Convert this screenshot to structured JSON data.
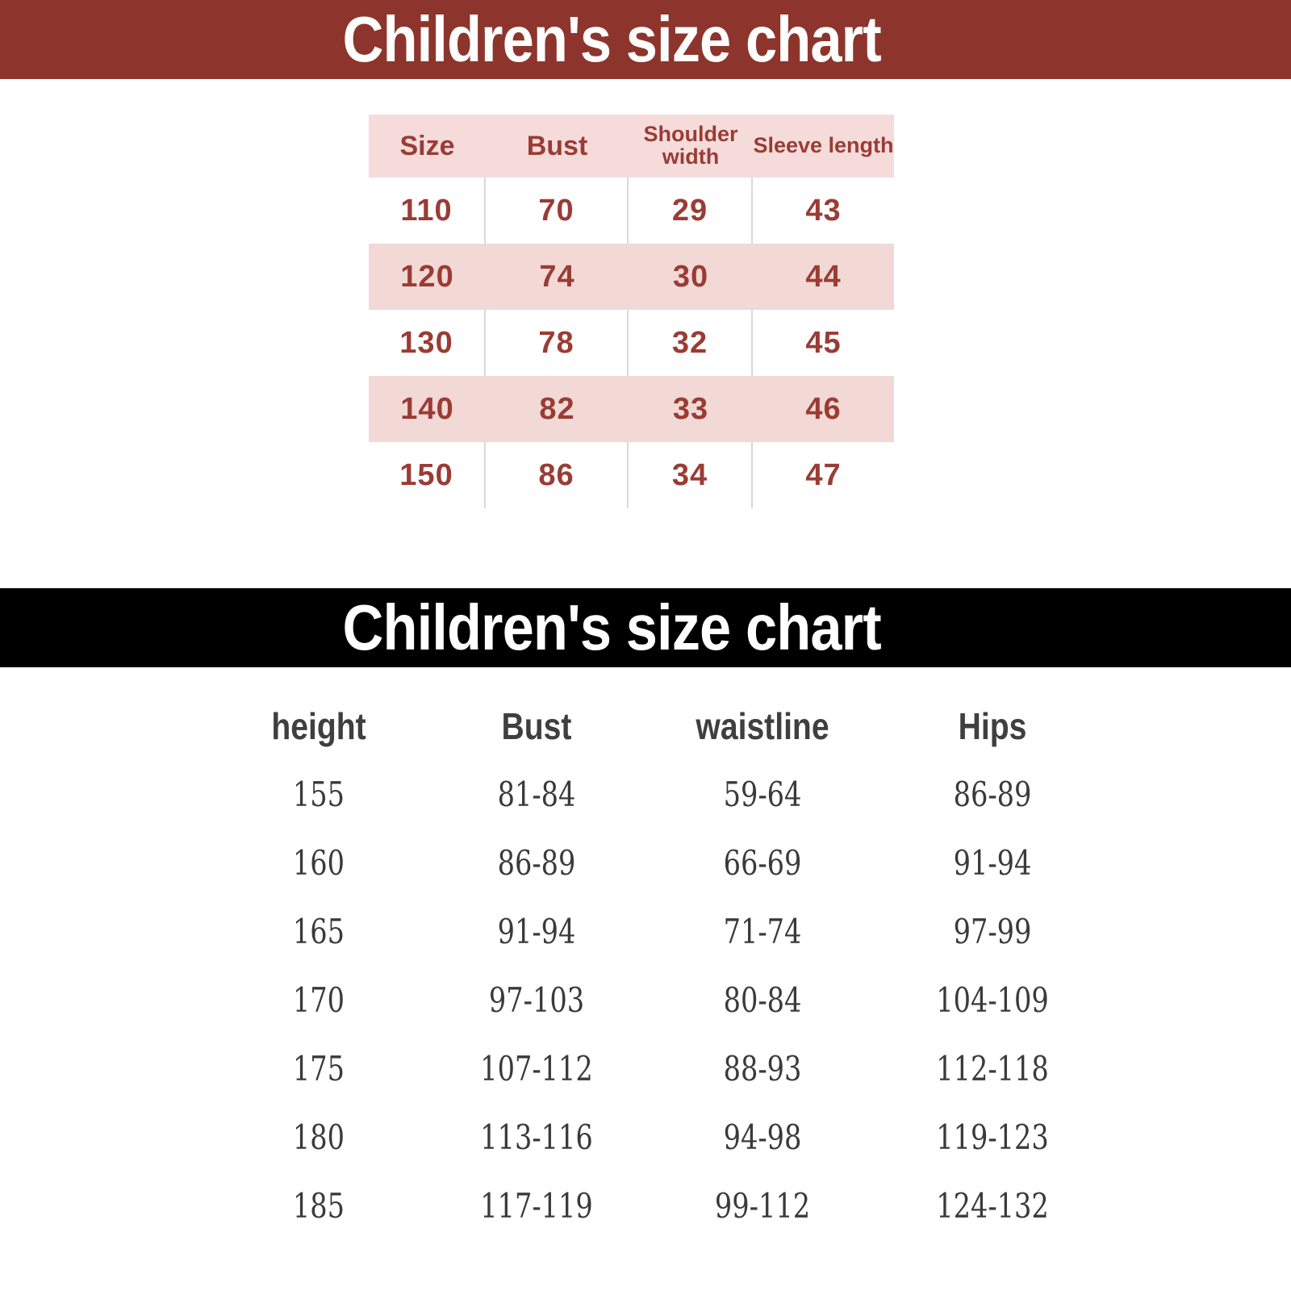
{
  "colors": {
    "page_bg": "#ffffff",
    "top_bar": "#8d352c",
    "bottom_bar": "#000000",
    "title_text": "#ffffff",
    "table1_header_bg": "#f5dcdb",
    "table1_alt_row_bg": "#f2d9d6",
    "table1_text": "#9a3c35",
    "divider": "#d9d9db",
    "table2_header_text": "#3f3f3f",
    "table2_text": "#3a3a3a"
  },
  "sections": [
    {
      "title": "Children's size chart"
    },
    {
      "title": "Children's size chart"
    }
  ],
  "chart_data": [
    {
      "type": "table",
      "title": "Children's size chart",
      "columns": [
        "Size",
        "Bust",
        "Shoulder width",
        "Sleeve length"
      ],
      "rows": [
        [
          "110",
          "70",
          "29",
          "43"
        ],
        [
          "120",
          "74",
          "30",
          "44"
        ],
        [
          "130",
          "78",
          "32",
          "45"
        ],
        [
          "140",
          "82",
          "33",
          "46"
        ],
        [
          "150",
          "86",
          "34",
          "47"
        ]
      ],
      "layout_hints": {
        "alt_row_shading": "rows 120 and 140 shaded pink",
        "grid": "light vertical dividers on white rows only"
      }
    },
    {
      "type": "table",
      "title": "Children's size chart",
      "columns": [
        "height",
        "Bust",
        "waistline",
        "Hips"
      ],
      "rows": [
        [
          "155",
          "81-84",
          "59-64",
          "86-89"
        ],
        [
          "160",
          "86-89",
          "66-69",
          "91-94"
        ],
        [
          "165",
          "91-94",
          "71-74",
          "97-99"
        ],
        [
          "170",
          "97-103",
          "80-84",
          "104-109"
        ],
        [
          "175",
          "107-112",
          "88-93",
          "112-118"
        ],
        [
          "180",
          "113-116",
          "94-98",
          "119-123"
        ],
        [
          "185",
          "117-119",
          "99-112",
          "124-132"
        ]
      ],
      "layout_hints": {
        "grid": "no gridlines, plain white background"
      }
    }
  ]
}
